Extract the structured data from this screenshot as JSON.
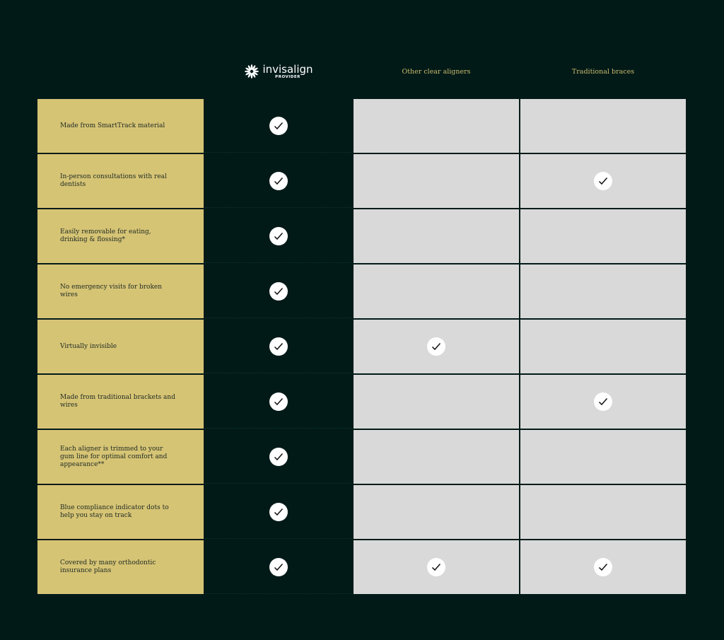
{
  "header": {
    "brand": {
      "name": "invisalign",
      "tagline": "PROVIDER",
      "icon": "starburst-logo-icon"
    },
    "columns": [
      "Other clear aligners",
      "Traditional braces"
    ]
  },
  "colors": {
    "background": "#011a18",
    "feature_cell": "#d6c475",
    "competitor_cell": "#d9d9d9",
    "header_text": "#cdbb6c"
  },
  "rows": [
    {
      "feature": "Made from SmartTrack material",
      "invisalign": true,
      "other": false,
      "braces": false
    },
    {
      "feature": "In-person consultations with real dentists",
      "invisalign": true,
      "other": false,
      "braces": true
    },
    {
      "feature": "Easily removable for eating, drinking & flossing*",
      "invisalign": true,
      "other": false,
      "braces": false
    },
    {
      "feature": "No emergency visits for broken wires",
      "invisalign": true,
      "other": false,
      "braces": false
    },
    {
      "feature": "Virtually invisible",
      "invisalign": true,
      "other": true,
      "braces": false
    },
    {
      "feature": "Made from traditional brackets and wires",
      "invisalign": true,
      "other": false,
      "braces": true
    },
    {
      "feature": "Each aligner is trimmed to your gum line for optimal comfort and appearance**",
      "invisalign": true,
      "other": false,
      "braces": false
    },
    {
      "feature": "Blue compliance indicator dots to help you stay on track",
      "invisalign": true,
      "other": false,
      "braces": false
    },
    {
      "feature": "Covered by many orthodontic insurance plans",
      "invisalign": true,
      "other": true,
      "braces": true
    }
  ]
}
